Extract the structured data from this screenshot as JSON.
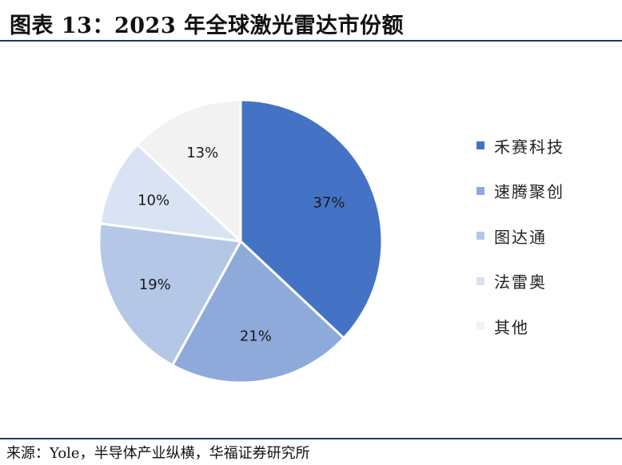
{
  "header": {
    "title": "图表 13：2023 年全球激光雷达市份额"
  },
  "footer": {
    "source": "来源：Yole，半导体产业纵横，华福证券研究所"
  },
  "chart_data": {
    "type": "pie",
    "title": "图表 13：2023 年全球激光雷达市份额",
    "unit": "%",
    "start_angle_deg": 0,
    "direction": "clockwise",
    "legend_position": "right",
    "slices": [
      {
        "name": "禾赛科技",
        "value": 37,
        "label": "37%",
        "color": "#4472c4"
      },
      {
        "name": "速腾聚创",
        "value": 21,
        "label": "21%",
        "color": "#8eaadb"
      },
      {
        "name": "图达通",
        "value": 19,
        "label": "19%",
        "color": "#b4c7e7"
      },
      {
        "name": "法雷奥",
        "value": 10,
        "label": "10%",
        "color": "#dae3f3"
      },
      {
        "name": "其他",
        "value": 13,
        "label": "13%",
        "color": "#f2f2f2"
      }
    ]
  }
}
